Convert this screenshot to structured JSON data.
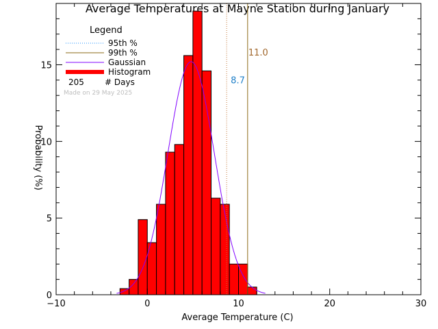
{
  "chart_data": {
    "type": "bar",
    "title": "Average Temperatures at Mayne Station during January",
    "xlabel": "Average Temperature (C)",
    "ylabel": "Probability (%)",
    "xlim": [
      -10,
      30
    ],
    "ylim": [
      0,
      19
    ],
    "xticks": [
      -10,
      0,
      10,
      20,
      30
    ],
    "yticks": [
      0,
      5,
      10,
      15
    ],
    "bin_width": 1,
    "bins": [
      {
        "x0": -3,
        "value": 0.4
      },
      {
        "x0": -2,
        "value": 1.0
      },
      {
        "x0": -1,
        "value": 4.9
      },
      {
        "x0": 0,
        "value": 3.4
      },
      {
        "x0": 1,
        "value": 5.9
      },
      {
        "x0": 2,
        "value": 9.3
      },
      {
        "x0": 3,
        "value": 9.8
      },
      {
        "x0": 4,
        "value": 15.6
      },
      {
        "x0": 5,
        "value": 18.5
      },
      {
        "x0": 6,
        "value": 14.6
      },
      {
        "x0": 7,
        "value": 6.3
      },
      {
        "x0": 8,
        "value": 5.9
      },
      {
        "x0": 9,
        "value": 2.0
      },
      {
        "x0": 10,
        "value": 2.0
      },
      {
        "x0": 11,
        "value": 0.5
      }
    ],
    "gaussian": {
      "mean": 4.8,
      "sigma": 2.55,
      "peak": 15.2
    },
    "percentile_95": {
      "value": 8.7,
      "label": "8.7",
      "color": "#c47a3e"
    },
    "percentile_99": {
      "value": 11.0,
      "label": "11.0",
      "color": "#8b6914"
    },
    "colors": {
      "histogram": "#ff0000",
      "gaussian": "#8000ff",
      "p95_legend": "#1e90ff",
      "p95_label": "#1e7fc8",
      "p99_label": "#a0662a"
    },
    "legend": {
      "title": "Legend",
      "items": [
        "95th %",
        "99th %",
        "Gaussian",
        "Histogram"
      ],
      "days_count": "205",
      "days_label": "# Days",
      "made_on": "Made on 29 May 2025"
    }
  }
}
